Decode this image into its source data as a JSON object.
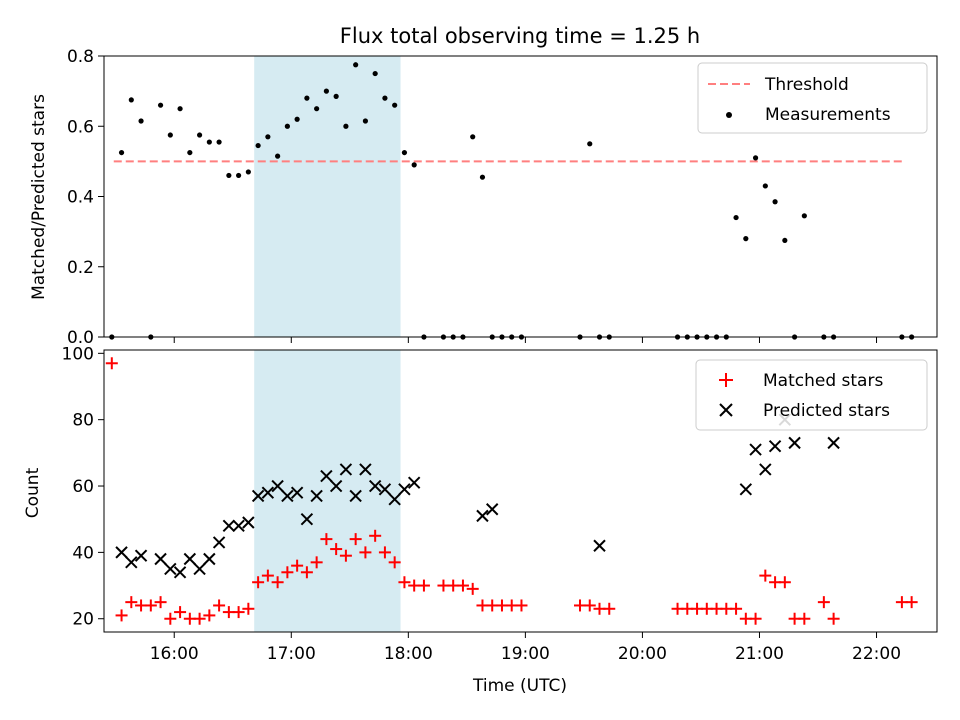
{
  "chart_data": [
    {
      "type": "scatter",
      "title": "Flux total observing time = 1.25 h",
      "xlabel": "",
      "ylabel": "Matched/Predicted stars",
      "xlim": [
        "15:24",
        "22:31"
      ],
      "ylim": [
        0,
        0.8
      ],
      "yticks": [
        0.0,
        0.2,
        0.4,
        0.6,
        0.8
      ],
      "ytick_labels": [
        "0.0",
        "0.2",
        "0.4",
        "0.6",
        "0.8"
      ],
      "highlight_span": [
        "16:41",
        "17:56"
      ],
      "legend_position": "upper-right",
      "series": [
        {
          "name": "Threshold",
          "kind": "line",
          "style": "dashed",
          "color": "#ff7f7f",
          "x": [
            "15:29",
            "22:13"
          ],
          "y": [
            0.5,
            0.5
          ]
        },
        {
          "name": "Measurements",
          "kind": "scatter",
          "marker": "dot",
          "color": "#000000",
          "x": [
            "15:28",
            "15:33",
            "15:38",
            "15:43",
            "15:48",
            "15:53",
            "15:58",
            "16:03",
            "16:08",
            "16:13",
            "16:18",
            "16:23",
            "16:28",
            "16:33",
            "16:38",
            "16:43",
            "16:48",
            "16:53",
            "16:58",
            "17:03",
            "17:08",
            "17:13",
            "17:18",
            "17:23",
            "17:28",
            "17:33",
            "17:38",
            "17:43",
            "17:48",
            "17:53",
            "17:58",
            "18:03",
            "18:08",
            "18:18",
            "18:23",
            "18:28",
            "18:33",
            "18:38",
            "18:43",
            "18:48",
            "18:53",
            "18:58",
            "19:28",
            "19:33",
            "19:38",
            "19:43",
            "20:18",
            "20:23",
            "20:28",
            "20:33",
            "20:38",
            "20:43",
            "20:48",
            "20:53",
            "20:58",
            "21:03",
            "21:08",
            "21:13",
            "21:18",
            "21:23",
            "21:33",
            "21:38",
            "22:13",
            "22:18"
          ],
          "y": [
            0.0,
            0.525,
            0.675,
            0.615,
            0.0,
            0.66,
            0.575,
            0.65,
            0.525,
            0.575,
            0.555,
            0.555,
            0.46,
            0.46,
            0.47,
            0.545,
            0.57,
            0.515,
            0.6,
            0.62,
            0.68,
            0.65,
            0.7,
            0.685,
            0.6,
            0.775,
            0.615,
            0.75,
            0.68,
            0.66,
            0.525,
            0.49,
            0.0,
            0.0,
            0.0,
            0.0,
            0.57,
            0.455,
            0.0,
            0.0,
            0.0,
            0.0,
            0.0,
            0.55,
            0.0,
            0.0,
            0.0,
            0.0,
            0.0,
            0.0,
            0.0,
            0.0,
            0.34,
            0.28,
            0.51,
            0.43,
            0.385,
            0.275,
            0.0,
            0.345,
            0.0,
            0.0,
            0.0,
            0.0
          ]
        }
      ]
    },
    {
      "type": "scatter",
      "title": "",
      "xlabel": "Time (UTC)",
      "ylabel": "Count",
      "xlim": [
        "15:24",
        "22:31"
      ],
      "ylim": [
        16,
        101
      ],
      "xticks": [
        "16:00",
        "17:00",
        "18:00",
        "19:00",
        "20:00",
        "21:00",
        "22:00"
      ],
      "yticks": [
        20,
        40,
        60,
        80,
        100
      ],
      "ytick_labels": [
        "20",
        "40",
        "60",
        "80",
        "100"
      ],
      "highlight_span": [
        "16:41",
        "17:56"
      ],
      "legend_position": "upper-right",
      "series": [
        {
          "name": "Matched stars",
          "kind": "scatter",
          "marker": "plus",
          "color": "#ff0000",
          "x": [
            "15:28",
            "15:33",
            "15:38",
            "15:43",
            "15:48",
            "15:53",
            "15:58",
            "16:03",
            "16:08",
            "16:13",
            "16:18",
            "16:23",
            "16:28",
            "16:33",
            "16:38",
            "16:43",
            "16:48",
            "16:53",
            "16:58",
            "17:03",
            "17:08",
            "17:13",
            "17:18",
            "17:23",
            "17:28",
            "17:33",
            "17:38",
            "17:43",
            "17:48",
            "17:53",
            "17:58",
            "18:03",
            "18:08",
            "18:18",
            "18:23",
            "18:28",
            "18:33",
            "18:38",
            "18:43",
            "18:48",
            "18:53",
            "18:58",
            "19:28",
            "19:33",
            "19:38",
            "19:43",
            "20:18",
            "20:23",
            "20:28",
            "20:33",
            "20:38",
            "20:43",
            "20:48",
            "20:53",
            "20:58",
            "21:03",
            "21:08",
            "21:13",
            "21:18",
            "21:23",
            "21:33",
            "21:38",
            "22:13",
            "22:18"
          ],
          "y": [
            97,
            21,
            25,
            24,
            24,
            25,
            20,
            22,
            20,
            20,
            21,
            24,
            22,
            22,
            23,
            31,
            33,
            31,
            34,
            36,
            34,
            37,
            44,
            41,
            39,
            44,
            40,
            45,
            40,
            37,
            31,
            30,
            30,
            30,
            30,
            30,
            29,
            24,
            24,
            24,
            24,
            24,
            24,
            24,
            23,
            23,
            23,
            23,
            23,
            23,
            23,
            23,
            23,
            20,
            20,
            33,
            31,
            31,
            20,
            20,
            25,
            20,
            25,
            25
          ]
        },
        {
          "name": "Predicted stars",
          "kind": "scatter",
          "marker": "x",
          "color": "#000000",
          "x": [
            "15:33",
            "15:38",
            "15:43",
            "15:53",
            "15:58",
            "16:03",
            "16:08",
            "16:13",
            "16:18",
            "16:23",
            "16:28",
            "16:33",
            "16:38",
            "16:43",
            "16:48",
            "16:53",
            "16:58",
            "17:03",
            "17:08",
            "17:13",
            "17:18",
            "17:23",
            "17:28",
            "17:33",
            "17:38",
            "17:43",
            "17:48",
            "17:53",
            "17:58",
            "18:03",
            "18:38",
            "18:43",
            "19:38",
            "20:53",
            "20:58",
            "21:03",
            "21:08",
            "21:13",
            "21:18",
            "21:38"
          ],
          "y": [
            40,
            37,
            39,
            38,
            35,
            34,
            38,
            35,
            38,
            43,
            48,
            48,
            49,
            57,
            58,
            60,
            57,
            58,
            50,
            57,
            63,
            60,
            65,
            57,
            65,
            60,
            59,
            56,
            59,
            61,
            51,
            53,
            42,
            59,
            71,
            65,
            72,
            80,
            73,
            73
          ]
        }
      ]
    }
  ]
}
